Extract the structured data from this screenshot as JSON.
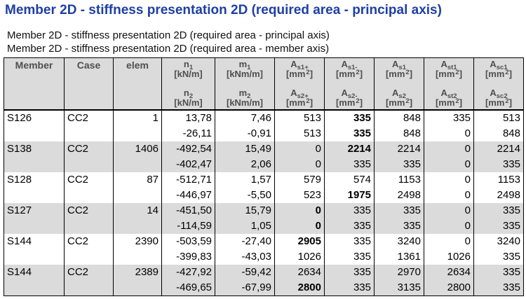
{
  "title": "Member 2D - stiffness presentation 2D (required area - principal axis)",
  "subtitles": [
    "Member 2D - stiffness presentation 2D (required area - principal axis)",
    "Member 2D - stiffness presentation 2D (required area - member axis)"
  ],
  "colors": {
    "title": "#1E3FA4",
    "header_text": "#4F4F4F",
    "band_gray": "#DBDBDB",
    "border": "#000000"
  },
  "table": {
    "static_headers": [
      {
        "key": "member",
        "label": "Member"
      },
      {
        "key": "case",
        "label": "Case"
      },
      {
        "key": "elem",
        "label": "elem"
      }
    ],
    "value_headers": [
      {
        "key": "n",
        "top_sym": "n",
        "top_sub": "1",
        "bottom_sym": "n",
        "bottom_sub": "2",
        "unit": "kN/m",
        "unit_sup": ""
      },
      {
        "key": "m",
        "top_sym": "m",
        "top_sub": "1",
        "bottom_sym": "m",
        "bottom_sub": "2",
        "unit": "kNm/m",
        "unit_sup": ""
      },
      {
        "key": "as-plus",
        "top_sym": "A",
        "top_sub": "s1+",
        "bottom_sym": "A",
        "bottom_sub": "s2+",
        "unit": "mm",
        "unit_sup": "2"
      },
      {
        "key": "as-minus",
        "top_sym": "A",
        "top_sub": "s1-",
        "bottom_sym": "A",
        "bottom_sub": "s2-",
        "unit": "mm",
        "unit_sup": "2"
      },
      {
        "key": "as",
        "top_sym": "A",
        "top_sub": "s1",
        "bottom_sym": "A",
        "bottom_sub": "s2",
        "unit": "mm",
        "unit_sup": "2"
      },
      {
        "key": "ast",
        "top_sym": "A",
        "top_sub": "st1",
        "bottom_sym": "A",
        "bottom_sub": "st2",
        "unit": "mm",
        "unit_sup": "2"
      },
      {
        "key": "asc",
        "top_sym": "A",
        "top_sub": "sc1",
        "bottom_sym": "A",
        "bottom_sub": "sc2",
        "unit": "mm",
        "unit_sup": "2"
      }
    ],
    "rows": [
      {
        "member": "S126",
        "case": "CC2",
        "elem": "1",
        "shaded": false,
        "line1": [
          "13,78",
          "7,46",
          "513",
          "335",
          "848",
          "335",
          "513"
        ],
        "line2": [
          "-26,11",
          "-0,91",
          "513",
          "335",
          "848",
          "0",
          "848"
        ],
        "bold1": [
          3
        ],
        "bold2": [
          3
        ]
      },
      {
        "member": "S138",
        "case": "CC2",
        "elem": "1406",
        "shaded": true,
        "line1": [
          "-492,54",
          "15,49",
          "0",
          "2214",
          "2214",
          "0",
          "2214"
        ],
        "line2": [
          "-402,47",
          "2,06",
          "0",
          "335",
          "335",
          "0",
          "335"
        ],
        "bold1": [
          3
        ],
        "bold2": []
      },
      {
        "member": "S128",
        "case": "CC2",
        "elem": "87",
        "shaded": false,
        "line1": [
          "-512,71",
          "1,57",
          "579",
          "574",
          "1153",
          "0",
          "1153"
        ],
        "line2": [
          "-446,97",
          "-5,50",
          "523",
          "1975",
          "2498",
          "0",
          "2498"
        ],
        "bold1": [],
        "bold2": [
          3
        ]
      },
      {
        "member": "S127",
        "case": "CC2",
        "elem": "14",
        "shaded": true,
        "line1": [
          "-451,50",
          "15,79",
          "0",
          "335",
          "335",
          "0",
          "335"
        ],
        "line2": [
          "-114,59",
          "1,05",
          "0",
          "335",
          "335",
          "0",
          "335"
        ],
        "bold1": [
          2
        ],
        "bold2": [
          2
        ]
      },
      {
        "member": "S144",
        "case": "CC2",
        "elem": "2390",
        "shaded": false,
        "line1": [
          "-503,59",
          "-27,40",
          "2905",
          "335",
          "3240",
          "0",
          "3240"
        ],
        "line2": [
          "-399,83",
          "-43,03",
          "1026",
          "335",
          "1361",
          "1026",
          "335"
        ],
        "bold1": [
          2
        ],
        "bold2": []
      },
      {
        "member": "S144",
        "case": "CC2",
        "elem": "2389",
        "shaded": true,
        "line1": [
          "-427,92",
          "-59,42",
          "2634",
          "335",
          "2970",
          "2634",
          "335"
        ],
        "line2": [
          "-469,65",
          "-67,99",
          "2800",
          "335",
          "3135",
          "2800",
          "335"
        ],
        "bold1": [],
        "bold2": [
          2
        ]
      }
    ]
  }
}
